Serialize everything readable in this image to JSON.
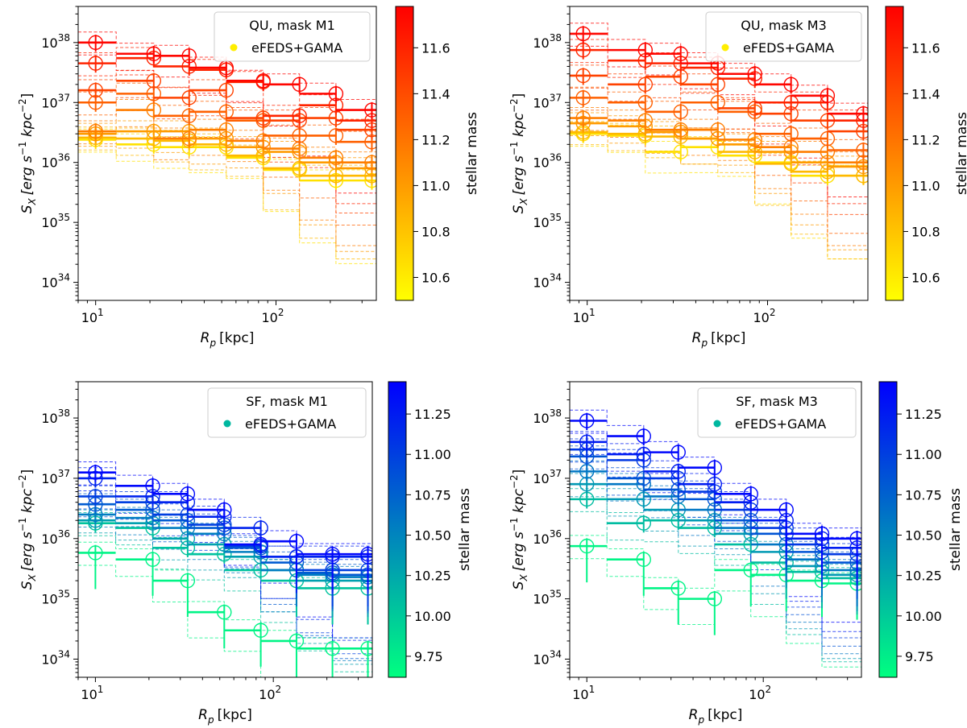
{
  "figure": {
    "x_label_main": "R",
    "x_label_sub": "p",
    "x_label_unit": "[kpc]",
    "y_label_main": "S",
    "y_label_sub": "X",
    "y_label_unit_a": "[erg s",
    "y_label_unit_b": " kpc",
    "y_label_unit_c": "]",
    "y_label_exp1": "−1",
    "y_label_exp2": "−2",
    "colorbar_label": "stellar mass"
  },
  "chart_data": [
    {
      "type": "scatter",
      "title": "QU, mask M1",
      "legend_label": "eFEDS+GAMA",
      "legend_marker_color": "#ffee00",
      "legend_position": "top-right",
      "xscale": "log",
      "yscale": "log",
      "xlim": [
        8,
        360
      ],
      "ylim": [
        5e+33,
        4e+38
      ],
      "xticks": [
        {
          "v": 10,
          "base": "10",
          "exp": "1"
        },
        {
          "v": 100,
          "base": "10",
          "exp": "2"
        }
      ],
      "yticks": [
        {
          "v": 1e+34,
          "base": "10",
          "exp": "34"
        },
        {
          "v": 1e+35,
          "base": "10",
          "exp": "35"
        },
        {
          "v": 1e+36,
          "base": "10",
          "exp": "36"
        },
        {
          "v": 1e+37,
          "base": "10",
          "exp": "37"
        },
        {
          "v": 1e+38,
          "base": "10",
          "exp": "38"
        }
      ],
      "colormap": "autumn_r",
      "clim": [
        10.5,
        11.78
      ],
      "cticks": [
        "10.6",
        "10.8",
        "11.0",
        "11.2",
        "11.4",
        "11.6"
      ],
      "cticks_values": [
        10.6,
        10.8,
        11.0,
        11.2,
        11.4,
        11.6
      ],
      "bins": [
        [
          8,
          13
        ],
        [
          13,
          21
        ],
        [
          21,
          33
        ],
        [
          33,
          53
        ],
        [
          53,
          85
        ],
        [
          85,
          135
        ],
        [
          135,
          215
        ],
        [
          215,
          360
        ]
      ],
      "r_centers": [
        10,
        21,
        33,
        53,
        85,
        135,
        215,
        340
      ],
      "series": [
        {
          "mass": 11.75,
          "values": [
            1e+38,
            6.5e+37,
            6e+37,
            3.8e+37,
            2.3e+37,
            2e+37,
            1.4e+37,
            7.5e+36
          ]
        },
        {
          "mass": 11.6,
          "values": [
            4.5e+37,
            5.5e+37,
            4e+37,
            3.5e+37,
            2.2e+37,
            6e+36,
            9e+36,
            5e+36
          ]
        },
        {
          "mass": 11.45,
          "values": [
            1.6e+37,
            2.3e+37,
            1.2e+37,
            1.6e+37,
            5.5e+36,
            5e+36,
            5.5e+36,
            3.5e+36
          ]
        },
        {
          "mass": 11.3,
          "values": [
            1e+37,
            1.4e+37,
            6e+36,
            7e+36,
            5e+36,
            2.8e+36,
            2.8e+36,
            2.2e+36
          ]
        },
        {
          "mass": 11.15,
          "values": [
            3.3e+36,
            7.5e+36,
            2.5e+36,
            3.5e+36,
            2.3e+36,
            1.7e+36,
            1.2e+36,
            1e+36
          ]
        },
        {
          "mass": 11.0,
          "values": [
            3e+36,
            3.3e+36,
            3.3e+36,
            2.5e+36,
            1.8e+36,
            1.5e+36,
            1e+36,
            8e+35
          ]
        },
        {
          "mass": 10.85,
          "values": [
            2.6e+36,
            2.5e+36,
            2.3e+36,
            2e+36,
            1.3e+36,
            8e+35,
            6e+35,
            6e+35
          ]
        },
        {
          "mass": 10.65,
          "values": [
            2.4e+36,
            2e+36,
            1.8e+36,
            1.8e+36,
            1.2e+36,
            7.5e+35,
            5e+35,
            5e+35
          ]
        }
      ]
    },
    {
      "type": "scatter",
      "title": "QU, mask M3",
      "legend_label": "eFEDS+GAMA",
      "legend_marker_color": "#ffee00",
      "legend_position": "top-right",
      "xscale": "log",
      "yscale": "log",
      "xlim": [
        8,
        360
      ],
      "ylim": [
        5e+33,
        4e+38
      ],
      "xticks": [
        {
          "v": 10,
          "base": "10",
          "exp": "1"
        },
        {
          "v": 100,
          "base": "10",
          "exp": "2"
        }
      ],
      "yticks": [
        {
          "v": 1e+34,
          "base": "10",
          "exp": "34"
        },
        {
          "v": 1e+35,
          "base": "10",
          "exp": "35"
        },
        {
          "v": 1e+36,
          "base": "10",
          "exp": "36"
        },
        {
          "v": 1e+37,
          "base": "10",
          "exp": "37"
        },
        {
          "v": 1e+38,
          "base": "10",
          "exp": "38"
        }
      ],
      "colormap": "autumn_r",
      "clim": [
        10.5,
        11.78
      ],
      "cticks": [
        "10.6",
        "10.8",
        "11.0",
        "11.2",
        "11.4",
        "11.6"
      ],
      "cticks_values": [
        10.6,
        10.8,
        11.0,
        11.2,
        11.4,
        11.6
      ],
      "bins": [
        [
          8,
          13
        ],
        [
          13,
          21
        ],
        [
          21,
          33
        ],
        [
          33,
          53
        ],
        [
          53,
          85
        ],
        [
          85,
          135
        ],
        [
          135,
          215
        ],
        [
          215,
          360
        ]
      ],
      "r_centers": [
        9.5,
        21,
        33,
        53,
        85,
        135,
        215,
        340
      ],
      "series": [
        {
          "mass": 11.75,
          "values": [
            1.4e+38,
            7.5e+37,
            6.5e+37,
            4.5e+37,
            3e+37,
            2e+37,
            1.3e+37,
            6.5e+36
          ]
        },
        {
          "mass": 11.6,
          "values": [
            7.5e+37,
            5e+37,
            4.5e+37,
            3.8e+37,
            2.5e+37,
            1e+37,
            1e+37,
            5e+36
          ]
        },
        {
          "mass": 11.45,
          "values": [
            2.8e+37,
            2e+37,
            2.7e+37,
            2e+37,
            8e+36,
            6.5e+36,
            5e+36,
            3.3e+36
          ]
        },
        {
          "mass": 11.3,
          "values": [
            1.2e+37,
            1e+37,
            7e+36,
            1e+37,
            7e+36,
            3e+36,
            2.5e+36,
            1.6e+36
          ]
        },
        {
          "mass": 11.15,
          "values": [
            5.5e+36,
            5e+36,
            3.5e+36,
            3.5e+36,
            2.4e+36,
            1.8e+36,
            1.5e+36,
            1e+36
          ]
        },
        {
          "mass": 11.0,
          "values": [
            4.5e+36,
            4e+36,
            3.2e+36,
            2.5e+36,
            2e+36,
            1.5e+36,
            1e+36,
            8.5e+35
          ]
        },
        {
          "mass": 10.85,
          "values": [
            3.2e+36,
            3e+36,
            2.7e+36,
            2.5e+36,
            1.5e+36,
            9.5e+35,
            7e+35,
            6e+35
          ]
        },
        {
          "mass": 10.65,
          "values": [
            3e+36,
            2.8e+36,
            1.5e+36,
            1.8e+36,
            1.3e+36,
            1e+36,
            6e+35,
            6e+35
          ]
        }
      ]
    },
    {
      "type": "scatter",
      "title": "SF, mask M1",
      "legend_label": "eFEDS+GAMA",
      "legend_marker_color": "#00b8a0",
      "legend_position": "top-right",
      "xscale": "log",
      "yscale": "log",
      "xlim": [
        8,
        360
      ],
      "ylim": [
        5e+33,
        4e+38
      ],
      "xticks": [
        {
          "v": 10,
          "base": "10",
          "exp": "1"
        },
        {
          "v": 100,
          "base": "10",
          "exp": "2"
        }
      ],
      "yticks": [
        {
          "v": 1e+34,
          "base": "10",
          "exp": "34"
        },
        {
          "v": 1e+35,
          "base": "10",
          "exp": "35"
        },
        {
          "v": 1e+36,
          "base": "10",
          "exp": "36"
        },
        {
          "v": 1e+37,
          "base": "10",
          "exp": "37"
        },
        {
          "v": 1e+38,
          "base": "10",
          "exp": "38"
        }
      ],
      "colormap": "winter",
      "clim": [
        9.62,
        11.45
      ],
      "cticks": [
        "9.75",
        "10.00",
        "10.25",
        "10.50",
        "10.75",
        "11.00",
        "11.25"
      ],
      "cticks_values": [
        9.75,
        10.0,
        10.25,
        10.5,
        10.75,
        11.0,
        11.25
      ],
      "bins": [
        [
          8,
          13
        ],
        [
          13,
          21
        ],
        [
          21,
          33
        ],
        [
          33,
          53
        ],
        [
          53,
          85
        ],
        [
          85,
          135
        ],
        [
          135,
          215
        ],
        [
          215,
          360
        ]
      ],
      "r_centers": [
        10,
        21,
        33,
        53,
        85,
        135,
        215,
        340
      ],
      "series": [
        {
          "mass": 11.4,
          "values": [
            1.25e+37,
            7.5e+36,
            5.5e+36,
            3e+36,
            8e+35,
            9e+35,
            5.5e+35,
            5.5e+35
          ]
        },
        {
          "mass": 11.2,
          "values": [
            1e+37,
            5e+36,
            4e+36,
            2.3e+36,
            1.5e+36,
            5e+35,
            5e+35,
            5e+35
          ]
        },
        {
          "mass": 11.0,
          "values": [
            5e+36,
            4e+36,
            2.5e+36,
            1.7e+36,
            7.5e+35,
            5e+35,
            3e+35,
            3e+35
          ]
        },
        {
          "mass": 10.8,
          "values": [
            3.7e+36,
            3e+36,
            2e+36,
            1.5e+36,
            7e+35,
            4e+35,
            2.7e+35,
            2.5e+35
          ]
        },
        {
          "mass": 10.55,
          "values": [
            2.5e+36,
            2.2e+36,
            1.5e+36,
            1.2e+36,
            6e+35,
            3e+35,
            2.5e+35,
            2.3e+35
          ]
        },
        {
          "mass": 10.3,
          "values": [
            2e+36,
            1.8e+36,
            1e+36,
            8e+35,
            5e+35,
            3e+35,
            2e+35,
            2e+35
          ]
        },
        {
          "mass": 10.05,
          "values": [
            1.8e+36,
            1.5e+36,
            7e+35,
            5.5e+35,
            3e+35,
            2e+35,
            1.5e+35,
            1.5e+35
          ]
        },
        {
          "mass": 9.7,
          "values": [
            5.8e+35,
            4.5e+35,
            2e+35,
            6e+34,
            3e+34,
            2e+34,
            1.5e+34,
            1.5e+34
          ]
        }
      ]
    },
    {
      "type": "scatter",
      "title": "SF, mask M3",
      "legend_label": "eFEDS+GAMA",
      "legend_marker_color": "#00b8a0",
      "legend_position": "top-right",
      "xscale": "log",
      "yscale": "log",
      "xlim": [
        8,
        360
      ],
      "ylim": [
        5e+33,
        4e+38
      ],
      "xticks": [
        {
          "v": 10,
          "base": "10",
          "exp": "1"
        },
        {
          "v": 100,
          "base": "10",
          "exp": "2"
        }
      ],
      "yticks": [
        {
          "v": 1e+34,
          "base": "10",
          "exp": "34"
        },
        {
          "v": 1e+35,
          "base": "10",
          "exp": "35"
        },
        {
          "v": 1e+36,
          "base": "10",
          "exp": "36"
        },
        {
          "v": 1e+37,
          "base": "10",
          "exp": "37"
        },
        {
          "v": 1e+38,
          "base": "10",
          "exp": "38"
        }
      ],
      "colormap": "winter",
      "clim": [
        9.62,
        11.45
      ],
      "cticks": [
        "9.75",
        "10.00",
        "10.25",
        "10.50",
        "10.75",
        "11.00",
        "11.25"
      ],
      "cticks_values": [
        9.75,
        10.0,
        10.25,
        10.5,
        10.75,
        11.0,
        11.25
      ],
      "bins": [
        [
          8,
          13
        ],
        [
          13,
          21
        ],
        [
          21,
          33
        ],
        [
          33,
          53
        ],
        [
          53,
          85
        ],
        [
          85,
          135
        ],
        [
          135,
          215
        ],
        [
          215,
          360
        ]
      ],
      "r_centers": [
        10,
        21,
        33,
        53,
        85,
        135,
        215,
        340
      ],
      "series": [
        {
          "mass": 11.4,
          "values": [
            9e+37,
            5e+37,
            2.7e+37,
            1.5e+37,
            5.5e+36,
            3e+36,
            1.2e+36,
            1e+36
          ]
        },
        {
          "mass": 11.25,
          "values": [
            4e+37,
            2.5e+37,
            1.3e+37,
            8e+36,
            4e+36,
            2e+36,
            1e+36,
            7e+35
          ]
        },
        {
          "mass": 11.05,
          "values": [
            3e+37,
            2e+37,
            1e+37,
            6e+36,
            3e+36,
            1.5e+36,
            8e+35,
            5.5e+35
          ]
        },
        {
          "mass": 10.85,
          "values": [
            2.3e+37,
            1e+37,
            6.5e+36,
            4.5e+36,
            2e+36,
            1.2e+36,
            6e+35,
            4e+35
          ]
        },
        {
          "mass": 10.6,
          "values": [
            1.3e+37,
            8e+36,
            5e+36,
            3e+36,
            1.5e+36,
            8e+35,
            4.5e+35,
            3e+35
          ]
        },
        {
          "mass": 10.35,
          "values": [
            8e+36,
            4.5e+36,
            3e+36,
            2e+36,
            1.2e+36,
            6e+35,
            3.5e+35,
            2.5e+35
          ]
        },
        {
          "mass": 10.1,
          "values": [
            4.5e+36,
            1.8e+36,
            2e+36,
            1.5e+36,
            8e+35,
            4e+35,
            2.8e+35,
            2.2e+35
          ]
        },
        {
          "mass": 9.7,
          "values": [
            7.5e+35,
            4.5e+35,
            1.5e+35,
            1e+35,
            3e+35,
            2.5e+35,
            2e+35,
            1.8e+35
          ]
        }
      ]
    }
  ]
}
